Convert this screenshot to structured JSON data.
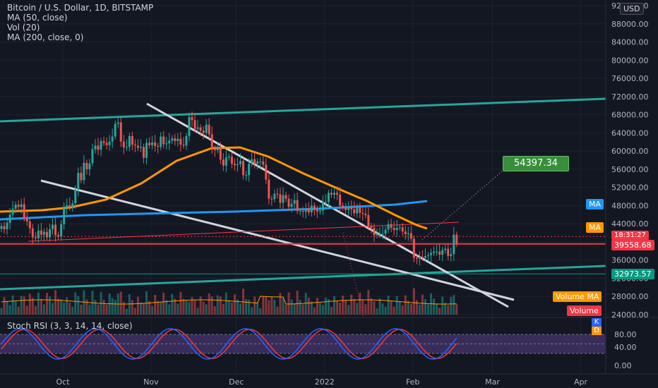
{
  "legend": {
    "symbol": "Bitcoin / U.S. Dollar, 1D, BITSTAMP",
    "ma50": "MA (50, close)",
    "vol": "Vol (20)",
    "ma200": "MA (200, close, 0)"
  },
  "currency_button": "USD",
  "target_label": "54397.34",
  "price_badges": {
    "countdown": "18:31:27",
    "last_price": "39558.68",
    "support": "32973.57",
    "ma_blue": "MA",
    "ma_orange": "MA",
    "volume_ma": "Volume MA",
    "volume": "Volume"
  },
  "rsi": {
    "title": "Stoch RSI (3, 3, 14, 14, close)",
    "k_label": "K",
    "d_label": "D"
  },
  "colors": {
    "background": "#131722",
    "up": "#26a69a",
    "down": "#ef5350",
    "ma50": "#ff9800",
    "ma200": "#2196f3",
    "channel": "#26a69a",
    "wedge": "#d1d4dc",
    "rsi_k": "#2962ff",
    "rsi_d": "#f23645",
    "rsi_band": "#7e57c2"
  },
  "chart_data": {
    "type": "candlestick",
    "y_axis_ticks": [
      24000,
      28000,
      32000,
      36000,
      40000,
      44000,
      48000,
      52000,
      56000,
      60000,
      64000,
      68000,
      72000,
      76000,
      80000,
      84000,
      88000,
      92000
    ],
    "y_tick_labels": [
      "24000.00",
      "28000.00",
      "32000.00",
      "36000.00",
      "40000.00",
      "44000.00",
      "48000.00",
      "52000.00",
      "56000.00",
      "60000.00",
      "64000.00",
      "68000.00",
      "72000.00",
      "76000.00",
      "80000.00",
      "84000.00",
      "88000.00",
      "92000.00"
    ],
    "x_axis_labels": [
      "Oct",
      "Nov",
      "Dec",
      "2022",
      "Feb",
      "Mar",
      "Apr"
    ],
    "x_axis_label_days": [
      30,
      61,
      91,
      122,
      153,
      181,
      212
    ],
    "ylim": [
      24000,
      92000
    ],
    "rsi_ticks": [
      "80.00",
      "40.00",
      "0.00"
    ],
    "rsi_tick_values": [
      80,
      40,
      0
    ],
    "close_prices": [
      43500,
      42800,
      44200,
      46000,
      47300,
      48200,
      47700,
      48300,
      45200,
      44500,
      43000,
      41000,
      40800,
      42500,
      41600,
      42200,
      41000,
      42800,
      43800,
      41500,
      41200,
      43900,
      47500,
      48100,
      47600,
      48500,
      51500,
      55200,
      53600,
      57400,
      56000,
      57300,
      60400,
      61200,
      60300,
      62200,
      61800,
      61300,
      62100,
      63200,
      66000,
      66300,
      62100,
      60800,
      60900,
      63300,
      61400,
      61200,
      60700,
      60900,
      58500,
      61800,
      61300,
      61900,
      61100,
      60900,
      63200,
      61500,
      61700,
      62300,
      62800,
      62200,
      62700,
      61400,
      61200,
      63300,
      67500,
      66800,
      64900,
      65200,
      64500,
      64000,
      65800,
      63700,
      60600,
      60200,
      60800,
      58100,
      56800,
      58600,
      58800,
      57200,
      56900,
      57100,
      57800,
      54700,
      54700,
      57200,
      58200,
      57200,
      57700,
      57700,
      57000,
      53700,
      49500,
      49400,
      50600,
      50500,
      48600,
      50300,
      49500,
      47700,
      48400,
      49200,
      46800,
      46800,
      46600,
      47300,
      46500,
      48000,
      47000,
      46700,
      46900,
      48800,
      48800,
      50800,
      50400,
      50800,
      50400,
      48000,
      47600,
      47000,
      47700,
      47200,
      46300,
      47700,
      46400,
      46200,
      45900,
      43500,
      43100,
      41500,
      41800,
      41800,
      41800,
      42700,
      43900,
      43100,
      42600,
      43100,
      43200,
      42300,
      41700,
      41900,
      40700,
      36500,
      36300,
      36700,
      36500,
      36900,
      37100,
      37600,
      37900,
      37900,
      37200,
      38200,
      38500,
      36900,
      37300,
      41600,
      39558
    ],
    "ma50_at": {
      "2021-10-15": 45000,
      "2021-11-10": 60400,
      "2021-12-01": 60000,
      "2022-01-01": 51000,
      "2022-02-04": 43000
    },
    "ma200_at": {
      "2021-09-01": 46000,
      "2021-12-01": 47200,
      "2022-02-04": 49500
    },
    "target_price": 54397.34,
    "annotations": [
      "descending wedge",
      "ascending channel",
      "target 54397.34"
    ]
  }
}
